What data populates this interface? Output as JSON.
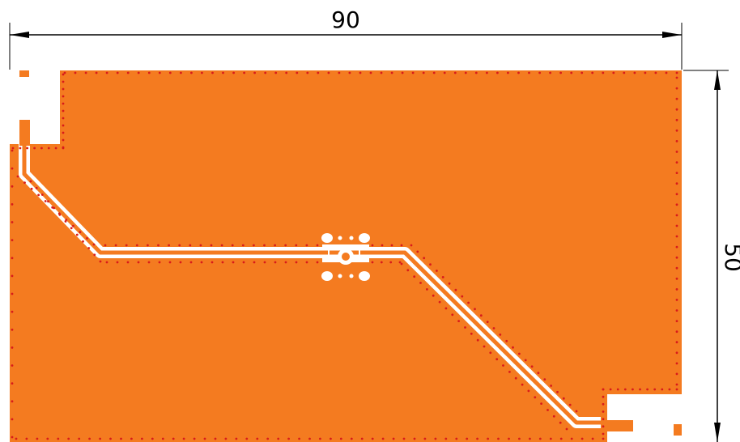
{
  "dimensions": {
    "width_label": "90",
    "height_label": "50"
  },
  "colors": {
    "copper": "#f47b20",
    "via": "#d81b1b",
    "clearance": "#ffffff",
    "dimension_line": "#000000"
  }
}
